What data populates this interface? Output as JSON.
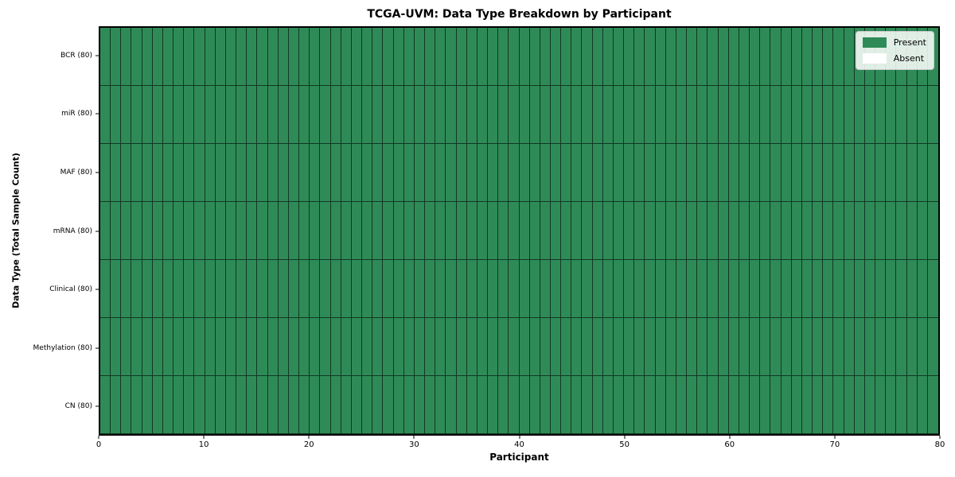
{
  "chart_data": {
    "type": "heatmap",
    "title": "TCGA-UVM: Data Type Breakdown by Participant",
    "xlabel": "Participant",
    "ylabel": "Data Type (Total Sample Count)",
    "xlim": [
      0,
      80
    ],
    "x_ticks": [
      0,
      10,
      20,
      30,
      40,
      50,
      60,
      70,
      80
    ],
    "n_participants": 80,
    "y_categories": [
      "BCR (80)",
      "miR (80)",
      "MAF (80)",
      "mRNA (80)",
      "Clinical (80)",
      "Methylation (80)",
      "CN (80)"
    ],
    "rows": [
      {
        "label": "BCR (80)",
        "present": 80,
        "absent": 0
      },
      {
        "label": "miR (80)",
        "present": 80,
        "absent": 0
      },
      {
        "label": "MAF (80)",
        "present": 80,
        "absent": 0
      },
      {
        "label": "mRNA (80)",
        "present": 80,
        "absent": 0
      },
      {
        "label": "Clinical (80)",
        "present": 80,
        "absent": 0
      },
      {
        "label": "Methylation (80)",
        "present": 80,
        "absent": 0
      },
      {
        "label": "CN (80)",
        "present": 80,
        "absent": 0
      }
    ],
    "legend": [
      {
        "label": "Present",
        "color": "#2e8b57"
      },
      {
        "label": "Absent",
        "color": "#ffffff"
      }
    ],
    "legend_position": "upper right",
    "grid": false,
    "colors": {
      "present": "#2e8b57",
      "absent": "#ffffff",
      "cell_edge": "rgba(0,0,0,0.60)",
      "spine": "#000000"
    }
  }
}
